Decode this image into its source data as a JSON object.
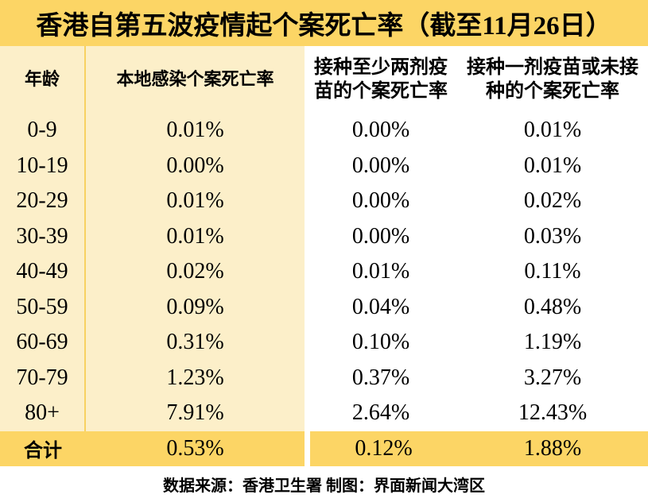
{
  "title": "香港自第五波疫情起个案死亡率（截至11月26日）",
  "table": {
    "columns": [
      {
        "id": "age",
        "lines": [
          "年龄"
        ]
      },
      {
        "id": "local-infection-cfr",
        "lines": [
          "本地感染个案死亡率"
        ]
      },
      {
        "id": "two-dose-cfr",
        "lines": [
          "接种至少两剂疫",
          "苗的个案死亡率"
        ]
      },
      {
        "id": "one-dose-or-unvaccinated-cfr",
        "lines": [
          "接种一剂疫苗或未接",
          "种的个案死亡率"
        ]
      }
    ],
    "rows": [
      {
        "age": "0-9",
        "cols": [
          "0.01%",
          "0.00%",
          "0.01%"
        ]
      },
      {
        "age": "10-19",
        "cols": [
          "0.00%",
          "0.00%",
          "0.01%"
        ]
      },
      {
        "age": "20-29",
        "cols": [
          "0.01%",
          "0.00%",
          "0.02%"
        ]
      },
      {
        "age": "30-39",
        "cols": [
          "0.01%",
          "0.00%",
          "0.03%"
        ]
      },
      {
        "age": "40-49",
        "cols": [
          "0.02%",
          "0.01%",
          "0.11%"
        ]
      },
      {
        "age": "50-59",
        "cols": [
          "0.09%",
          "0.04%",
          "0.48%"
        ]
      },
      {
        "age": "60-69",
        "cols": [
          "0.31%",
          "0.10%",
          "1.19%"
        ]
      },
      {
        "age": "70-79",
        "cols": [
          "1.23%",
          "0.37%",
          "3.27%"
        ]
      },
      {
        "age": "80+",
        "cols": [
          "7.91%",
          "2.64%",
          "12.43%"
        ]
      }
    ],
    "total": {
      "label": "合计",
      "cols": [
        "0.53%",
        "0.12%",
        "1.88%"
      ]
    }
  },
  "footer": {
    "credit": "数据来源：香港卫生署 制图：界面新闻大湾区"
  },
  "colors": {
    "gold": "#FCD565",
    "cream": "#FCEFC9",
    "divider": "#F8D161",
    "text": "#000000",
    "white": "#FFFFFF"
  },
  "chart_data": {
    "type": "table",
    "title": "香港自第五波疫情起个案死亡率（截至11月26日）",
    "unit": "%",
    "columns": [
      "年龄",
      "本地感染个案死亡率",
      "接种至少两剂疫苗的个案死亡率",
      "接种一剂疫苗或未接种的个案死亡率"
    ],
    "rows": [
      [
        "0-9",
        0.01,
        0.0,
        0.01
      ],
      [
        "10-19",
        0.0,
        0.0,
        0.01
      ],
      [
        "20-29",
        0.01,
        0.0,
        0.02
      ],
      [
        "30-39",
        0.01,
        0.0,
        0.03
      ],
      [
        "40-49",
        0.02,
        0.01,
        0.11
      ],
      [
        "50-59",
        0.09,
        0.04,
        0.48
      ],
      [
        "60-69",
        0.31,
        0.1,
        1.19
      ],
      [
        "70-79",
        1.23,
        0.37,
        3.27
      ],
      [
        "80+",
        7.91,
        2.64,
        12.43
      ],
      [
        "合计",
        0.53,
        0.12,
        1.88
      ]
    ],
    "source": "数据来源：香港卫生署 制图：界面新闻大湾区"
  }
}
